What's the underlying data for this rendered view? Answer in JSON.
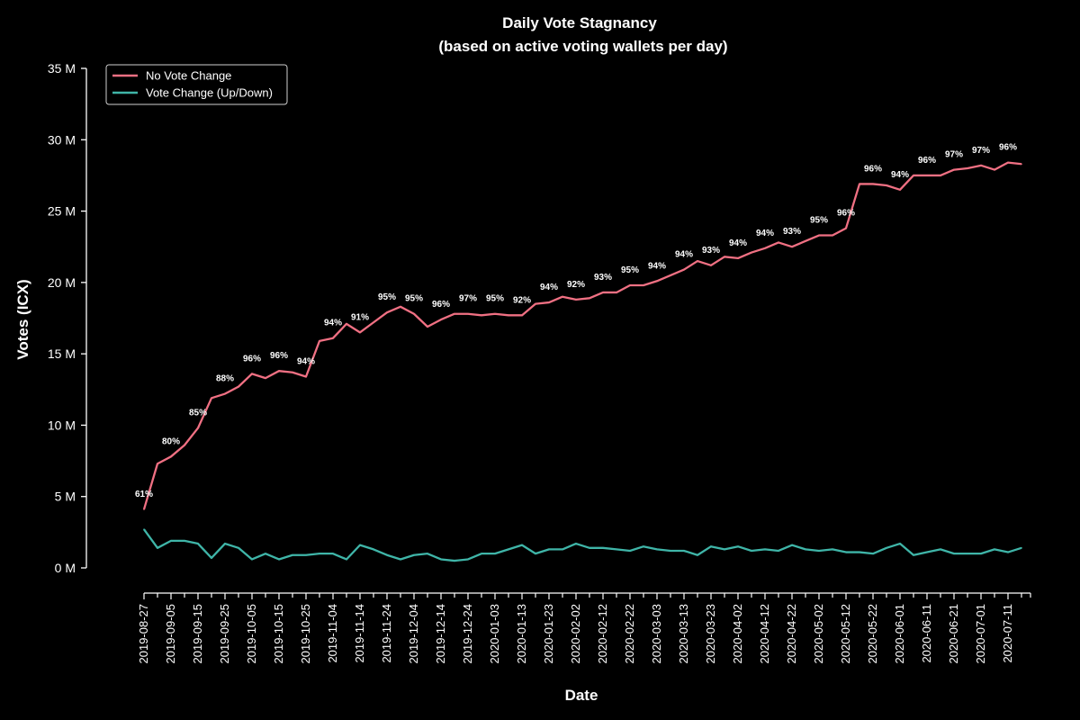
{
  "chart_data": {
    "type": "line",
    "title": "Daily Vote Stagnancy",
    "subtitle": "(based on active voting wallets per day)",
    "xlabel": "Date",
    "ylabel": "Votes (ICX)",
    "ylim": [
      0,
      35000000
    ],
    "y_ticks": [
      0,
      5000000,
      10000000,
      15000000,
      20000000,
      25000000,
      30000000,
      35000000
    ],
    "y_tick_labels": [
      "0 M",
      "5 M",
      "10 M",
      "15 M",
      "20 M",
      "25 M",
      "30 M",
      "35 M"
    ],
    "x_tick_labels": [
      "2019-08-27",
      "2019-09-05",
      "2019-09-15",
      "2019-09-25",
      "2019-10-05",
      "2019-10-15",
      "2019-10-25",
      "2019-11-04",
      "2019-11-14",
      "2019-11-24",
      "2019-12-04",
      "2019-12-14",
      "2019-12-24",
      "2020-01-03",
      "2020-01-13",
      "2020-01-23",
      "2020-02-02",
      "2020-02-12",
      "2020-02-22",
      "2020-03-03",
      "2020-03-13",
      "2020-03-23",
      "2020-04-02",
      "2020-04-12",
      "2020-04-22",
      "2020-05-02",
      "2020-05-12",
      "2020-05-22",
      "2020-06-01",
      "2020-06-11",
      "2020-06-21",
      "2020-07-01",
      "2020-07-11"
    ],
    "legend_position": "top-left",
    "grid": false,
    "series": [
      {
        "name": "No Vote Change",
        "color": "#f07083",
        "values": [
          4.1,
          7.3,
          7.8,
          8.6,
          9.8,
          11.9,
          12.2,
          12.7,
          13.6,
          13.3,
          13.8,
          13.7,
          13.4,
          15.9,
          16.1,
          17.1,
          16.5,
          17.2,
          17.9,
          18.3,
          17.8,
          16.9,
          17.4,
          17.8,
          17.8,
          17.7,
          17.8,
          17.7,
          17.7,
          18.5,
          18.6,
          19.0,
          18.8,
          18.9,
          19.3,
          19.3,
          19.8,
          19.8,
          20.1,
          20.5,
          20.9,
          21.5,
          21.2,
          21.8,
          21.7,
          22.1,
          22.4,
          22.8,
          22.5,
          22.9,
          23.3,
          23.3,
          23.8,
          26.9,
          26.9,
          26.8,
          26.5,
          27.5,
          27.5,
          27.5,
          27.9,
          28.0,
          28.2,
          27.9,
          28.4,
          28.3
        ]
      },
      {
        "name": "Vote Change (Up/Down)",
        "color": "#3fb5a8",
        "values": [
          2.7,
          1.4,
          1.9,
          1.9,
          1.7,
          0.7,
          1.7,
          1.4,
          0.6,
          1.0,
          0.6,
          0.9,
          0.9,
          1.0,
          1.0,
          0.6,
          1.6,
          1.3,
          0.9,
          0.6,
          0.9,
          1.0,
          0.6,
          0.5,
          0.6,
          1.0,
          1.0,
          1.3,
          1.6,
          1.0,
          1.3,
          1.3,
          1.7,
          1.4,
          1.4,
          1.3,
          1.2,
          1.5,
          1.3,
          1.2,
          1.2,
          0.9,
          1.5,
          1.3,
          1.5,
          1.2,
          1.3,
          1.2,
          1.6,
          1.3,
          1.2,
          1.3,
          1.1,
          1.1,
          1.0,
          1.4,
          1.7,
          0.9,
          1.1,
          1.3,
          1.0,
          1.0,
          1.0,
          1.3,
          1.1,
          1.4
        ]
      }
    ],
    "percent_labels": [
      {
        "i": 0,
        "text": "61%"
      },
      {
        "i": 2,
        "text": "80%"
      },
      {
        "i": 4,
        "text": "85%"
      },
      {
        "i": 6,
        "text": "88%"
      },
      {
        "i": 8,
        "text": "96%"
      },
      {
        "i": 10,
        "text": "96%"
      },
      {
        "i": 12,
        "text": "94%"
      },
      {
        "i": 14,
        "text": "94%"
      },
      {
        "i": 16,
        "text": "91%"
      },
      {
        "i": 18,
        "text": "95%"
      },
      {
        "i": 20,
        "text": "95%"
      },
      {
        "i": 22,
        "text": "96%"
      },
      {
        "i": 24,
        "text": "97%"
      },
      {
        "i": 26,
        "text": "95%"
      },
      {
        "i": 28,
        "text": "92%"
      },
      {
        "i": 30,
        "text": "94%"
      },
      {
        "i": 32,
        "text": "92%"
      },
      {
        "i": 34,
        "text": "93%"
      },
      {
        "i": 36,
        "text": "95%"
      },
      {
        "i": 38,
        "text": "94%"
      },
      {
        "i": 40,
        "text": "94%"
      },
      {
        "i": 42,
        "text": "93%"
      },
      {
        "i": 44,
        "text": "94%"
      },
      {
        "i": 46,
        "text": "94%"
      },
      {
        "i": 48,
        "text": "93%"
      },
      {
        "i": 50,
        "text": "95%"
      },
      {
        "i": 52,
        "text": "96%"
      },
      {
        "i": 54,
        "text": "96%"
      },
      {
        "i": 56,
        "text": "94%"
      },
      {
        "i": 58,
        "text": "96%"
      },
      {
        "i": 60,
        "text": "97%"
      },
      {
        "i": 62,
        "text": "97%"
      },
      {
        "i": 64,
        "text": "96%"
      }
    ]
  }
}
